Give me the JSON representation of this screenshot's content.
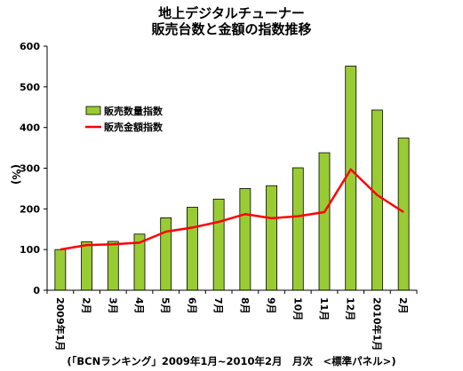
{
  "chart_data": {
    "type": "bar",
    "title": "地上デジタルチューナー",
    "subtitle": "販売台数と金額の指数推移",
    "ylabel": "(%)",
    "xlabel": "",
    "ylim": [
      0,
      600
    ],
    "yticks": [
      0,
      100,
      200,
      300,
      400,
      500,
      600
    ],
    "grid": false,
    "legend_position": "upper-left inside",
    "categories": [
      "2009年1月",
      "2月",
      "3月",
      "4月",
      "5月",
      "6月",
      "7月",
      "8月",
      "9月",
      "10月",
      "11月",
      "12月",
      "2010年1月",
      "2月"
    ],
    "series": [
      {
        "name": "販売数量指数",
        "kind": "bar",
        "color": "#99cc33",
        "values": [
          100,
          119,
          120,
          138,
          178,
          204,
          224,
          250,
          257,
          301,
          338,
          551,
          443,
          374
        ]
      },
      {
        "name": "販売金額指数",
        "kind": "line",
        "color": "#ff0000",
        "values": [
          100,
          111,
          113,
          117,
          144,
          154,
          168,
          187,
          177,
          182,
          192,
          297,
          234,
          192
        ]
      }
    ],
    "footnote": "(「BCNランキング」2009年1月~2010年2月　月次　<標準パネル>)"
  }
}
